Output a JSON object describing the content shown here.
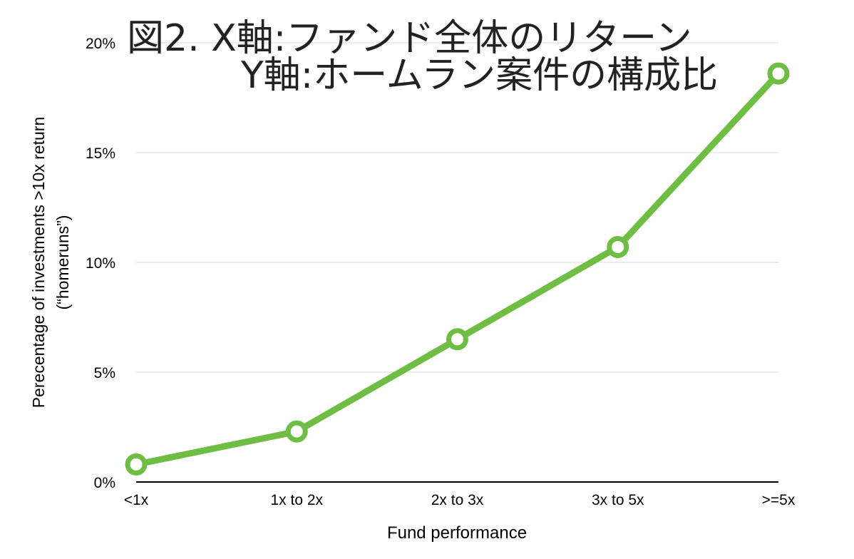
{
  "chart_data": {
    "type": "line",
    "title_lines": [
      "図2.  X軸:ファンド全体のリターン",
      "Y軸:ホームラン案件の構成比"
    ],
    "xlabel": "Fund performance",
    "ylabel_lines": [
      "Perecentage of investments >10x return",
      "(“homeruns”)"
    ],
    "categories": [
      "<1x",
      "1x to 2x",
      "2x to 3x",
      "3x to 5x",
      ">=5x"
    ],
    "series": [
      {
        "values": [
          0.8,
          2.3,
          6.5,
          10.7,
          18.6
        ]
      }
    ],
    "ylim": [
      0,
      20
    ],
    "yticks": [
      0,
      5,
      10,
      15,
      20
    ],
    "ytick_labels": [
      "0%",
      "5%",
      "10%",
      "15%",
      "20%"
    ],
    "grid": "horizontal",
    "colors": {
      "line": "#6fbe44",
      "marker_fill": "#ffffff",
      "grid": "#d9d9d9",
      "axis": "#000000",
      "text": "#000000"
    }
  }
}
